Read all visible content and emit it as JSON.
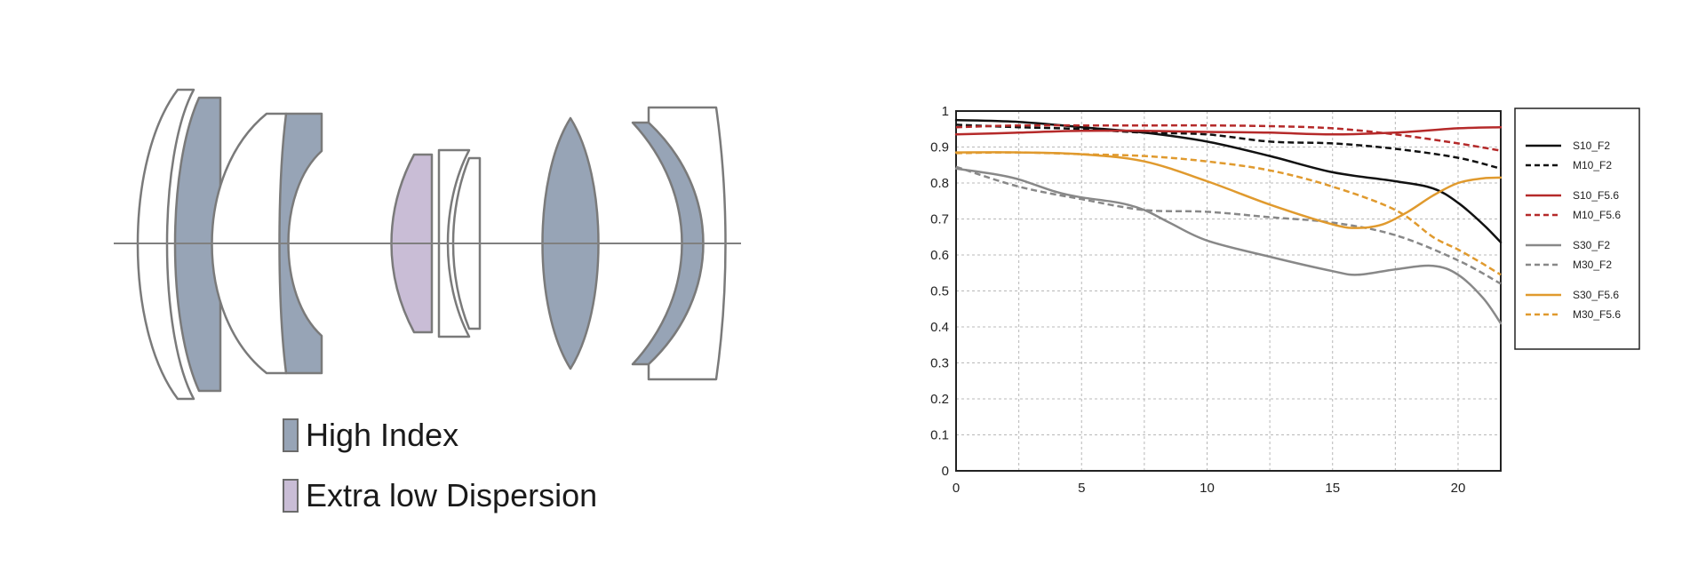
{
  "diagram": {
    "colors": {
      "high_index": "#97a4b6",
      "ed": "#c9bdd6",
      "plain": "#ffffff",
      "outline": "#7a7a7a",
      "axis": "#808080"
    },
    "element_types": [
      "plain",
      "high_index",
      "plain",
      "high_index",
      "ed",
      "plain",
      "plain",
      "high_index",
      "high_index",
      "plain"
    ],
    "legend": [
      {
        "label": "High Index",
        "color": "#97a4b6"
      },
      {
        "label": "Extra low Dispersion",
        "color": "#c9bdd6"
      }
    ]
  },
  "chart_data": {
    "type": "line",
    "xlim": [
      0,
      21.7
    ],
    "ylim": [
      0,
      1
    ],
    "x_ticks": [
      "0",
      "5",
      "10",
      "15",
      "20"
    ],
    "y_ticks": [
      "0",
      "0.1",
      "0.2",
      "0.3",
      "0.4",
      "0.5",
      "0.6",
      "0.7",
      "0.8",
      "0.9",
      "1"
    ],
    "grid": true,
    "legend_position": "right",
    "series": [
      {
        "name": "S10_F2",
        "color": "#111111",
        "dash": false,
        "points": [
          [
            0,
            0.975
          ],
          [
            2.5,
            0.97
          ],
          [
            5,
            0.955
          ],
          [
            7.5,
            0.94
          ],
          [
            10,
            0.915
          ],
          [
            12.5,
            0.875
          ],
          [
            15,
            0.83
          ],
          [
            17.5,
            0.805
          ],
          [
            19,
            0.785
          ],
          [
            20,
            0.745
          ],
          [
            21,
            0.685
          ],
          [
            21.7,
            0.635
          ]
        ]
      },
      {
        "name": "M10_F2",
        "color": "#111111",
        "dash": true,
        "points": [
          [
            0,
            0.962
          ],
          [
            2.5,
            0.955
          ],
          [
            5,
            0.95
          ],
          [
            7.5,
            0.94
          ],
          [
            10,
            0.935
          ],
          [
            12.5,
            0.915
          ],
          [
            15,
            0.91
          ],
          [
            17.5,
            0.895
          ],
          [
            20,
            0.87
          ],
          [
            21.7,
            0.84
          ]
        ]
      },
      {
        "name": "S10_F5.6",
        "color": "#b52a2a",
        "dash": false,
        "points": [
          [
            0,
            0.935
          ],
          [
            2.5,
            0.94
          ],
          [
            5,
            0.945
          ],
          [
            7.5,
            0.945
          ],
          [
            10,
            0.942
          ],
          [
            12.5,
            0.94
          ],
          [
            15,
            0.935
          ],
          [
            17.5,
            0.94
          ],
          [
            20,
            0.952
          ],
          [
            21.7,
            0.955
          ]
        ]
      },
      {
        "name": "M10_F5.6",
        "color": "#b52a2a",
        "dash": true,
        "points": [
          [
            0,
            0.955
          ],
          [
            2.5,
            0.96
          ],
          [
            5,
            0.96
          ],
          [
            7.5,
            0.96
          ],
          [
            10,
            0.96
          ],
          [
            12.5,
            0.958
          ],
          [
            15,
            0.952
          ],
          [
            17.5,
            0.935
          ],
          [
            20,
            0.91
          ],
          [
            21.7,
            0.89
          ]
        ]
      },
      {
        "name": "S30_F2",
        "color": "#888888",
        "dash": false,
        "points": [
          [
            0,
            0.84
          ],
          [
            1.5,
            0.825
          ],
          [
            2.5,
            0.81
          ],
          [
            4,
            0.775
          ],
          [
            5,
            0.76
          ],
          [
            6.5,
            0.745
          ],
          [
            7.5,
            0.725
          ],
          [
            8.5,
            0.69
          ],
          [
            10,
            0.64
          ],
          [
            12.5,
            0.595
          ],
          [
            15,
            0.555
          ],
          [
            16,
            0.545
          ],
          [
            17.5,
            0.56
          ],
          [
            19,
            0.57
          ],
          [
            20,
            0.545
          ],
          [
            21,
            0.48
          ],
          [
            21.7,
            0.41
          ]
        ]
      },
      {
        "name": "M30_F2",
        "color": "#888888",
        "dash": true,
        "points": [
          [
            0,
            0.845
          ],
          [
            2.5,
            0.79
          ],
          [
            5,
            0.755
          ],
          [
            7.5,
            0.725
          ],
          [
            10,
            0.72
          ],
          [
            12.5,
            0.705
          ],
          [
            15,
            0.69
          ],
          [
            17.5,
            0.655
          ],
          [
            20,
            0.585
          ],
          [
            21.7,
            0.52
          ]
        ]
      },
      {
        "name": "S30_F5.6",
        "color": "#e09a2e",
        "dash": false,
        "points": [
          [
            0,
            0.885
          ],
          [
            2.5,
            0.885
          ],
          [
            5,
            0.88
          ],
          [
            7.5,
            0.86
          ],
          [
            10,
            0.805
          ],
          [
            12.5,
            0.74
          ],
          [
            15,
            0.685
          ],
          [
            16,
            0.675
          ],
          [
            17,
            0.685
          ],
          [
            18,
            0.72
          ],
          [
            19,
            0.765
          ],
          [
            20,
            0.8
          ],
          [
            21,
            0.813
          ],
          [
            21.7,
            0.815
          ]
        ]
      },
      {
        "name": "M30_F5.6",
        "color": "#e09a2e",
        "dash": true,
        "points": [
          [
            0,
            0.883
          ],
          [
            2.5,
            0.885
          ],
          [
            5,
            0.88
          ],
          [
            7.5,
            0.875
          ],
          [
            10,
            0.86
          ],
          [
            12.5,
            0.835
          ],
          [
            15,
            0.79
          ],
          [
            17.5,
            0.725
          ],
          [
            19,
            0.65
          ],
          [
            20,
            0.615
          ],
          [
            21,
            0.575
          ],
          [
            21.7,
            0.545
          ]
        ]
      }
    ]
  }
}
